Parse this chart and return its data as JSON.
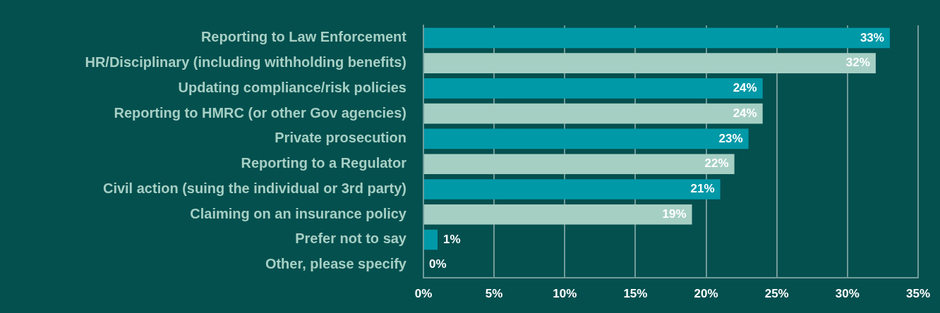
{
  "chart_data": {
    "type": "bar",
    "orientation": "horizontal",
    "categories": [
      "Reporting to Law Enforcement",
      "HR/Disciplinary (including withholding benefits)",
      "Updating compliance/risk policies",
      "Reporting to HMRC (or other Gov agencies)",
      "Private prosecution",
      "Reporting to a Regulator",
      "Civil action (suing the individual or 3rd party)",
      "Claiming on an insurance policy",
      "Prefer not to say",
      "Other, please specify"
    ],
    "values": [
      33,
      32,
      24,
      24,
      23,
      22,
      21,
      19,
      1,
      0
    ],
    "value_labels": [
      "33%",
      "32%",
      "24%",
      "24%",
      "23%",
      "22%",
      "21%",
      "19%",
      "1%",
      "0%"
    ],
    "colors": [
      "#0099a8",
      "#a6cfc4",
      "#0099a8",
      "#a6cfc4",
      "#0099a8",
      "#a6cfc4",
      "#0099a8",
      "#a6cfc4",
      "#0099a8",
      "#a6cfc4"
    ],
    "xlim": [
      0,
      35
    ],
    "xticks": [
      {
        "value": 0,
        "label": "0%"
      },
      {
        "value": 5,
        "label": "5%"
      },
      {
        "value": 10,
        "label": "10%"
      },
      {
        "value": 15,
        "label": "15%"
      },
      {
        "value": 20,
        "label": "20%"
      },
      {
        "value": 25,
        "label": "25%"
      },
      {
        "value": 30,
        "label": "30%"
      },
      {
        "value": 35,
        "label": "35%"
      }
    ],
    "grid": "x",
    "legend": false
  }
}
